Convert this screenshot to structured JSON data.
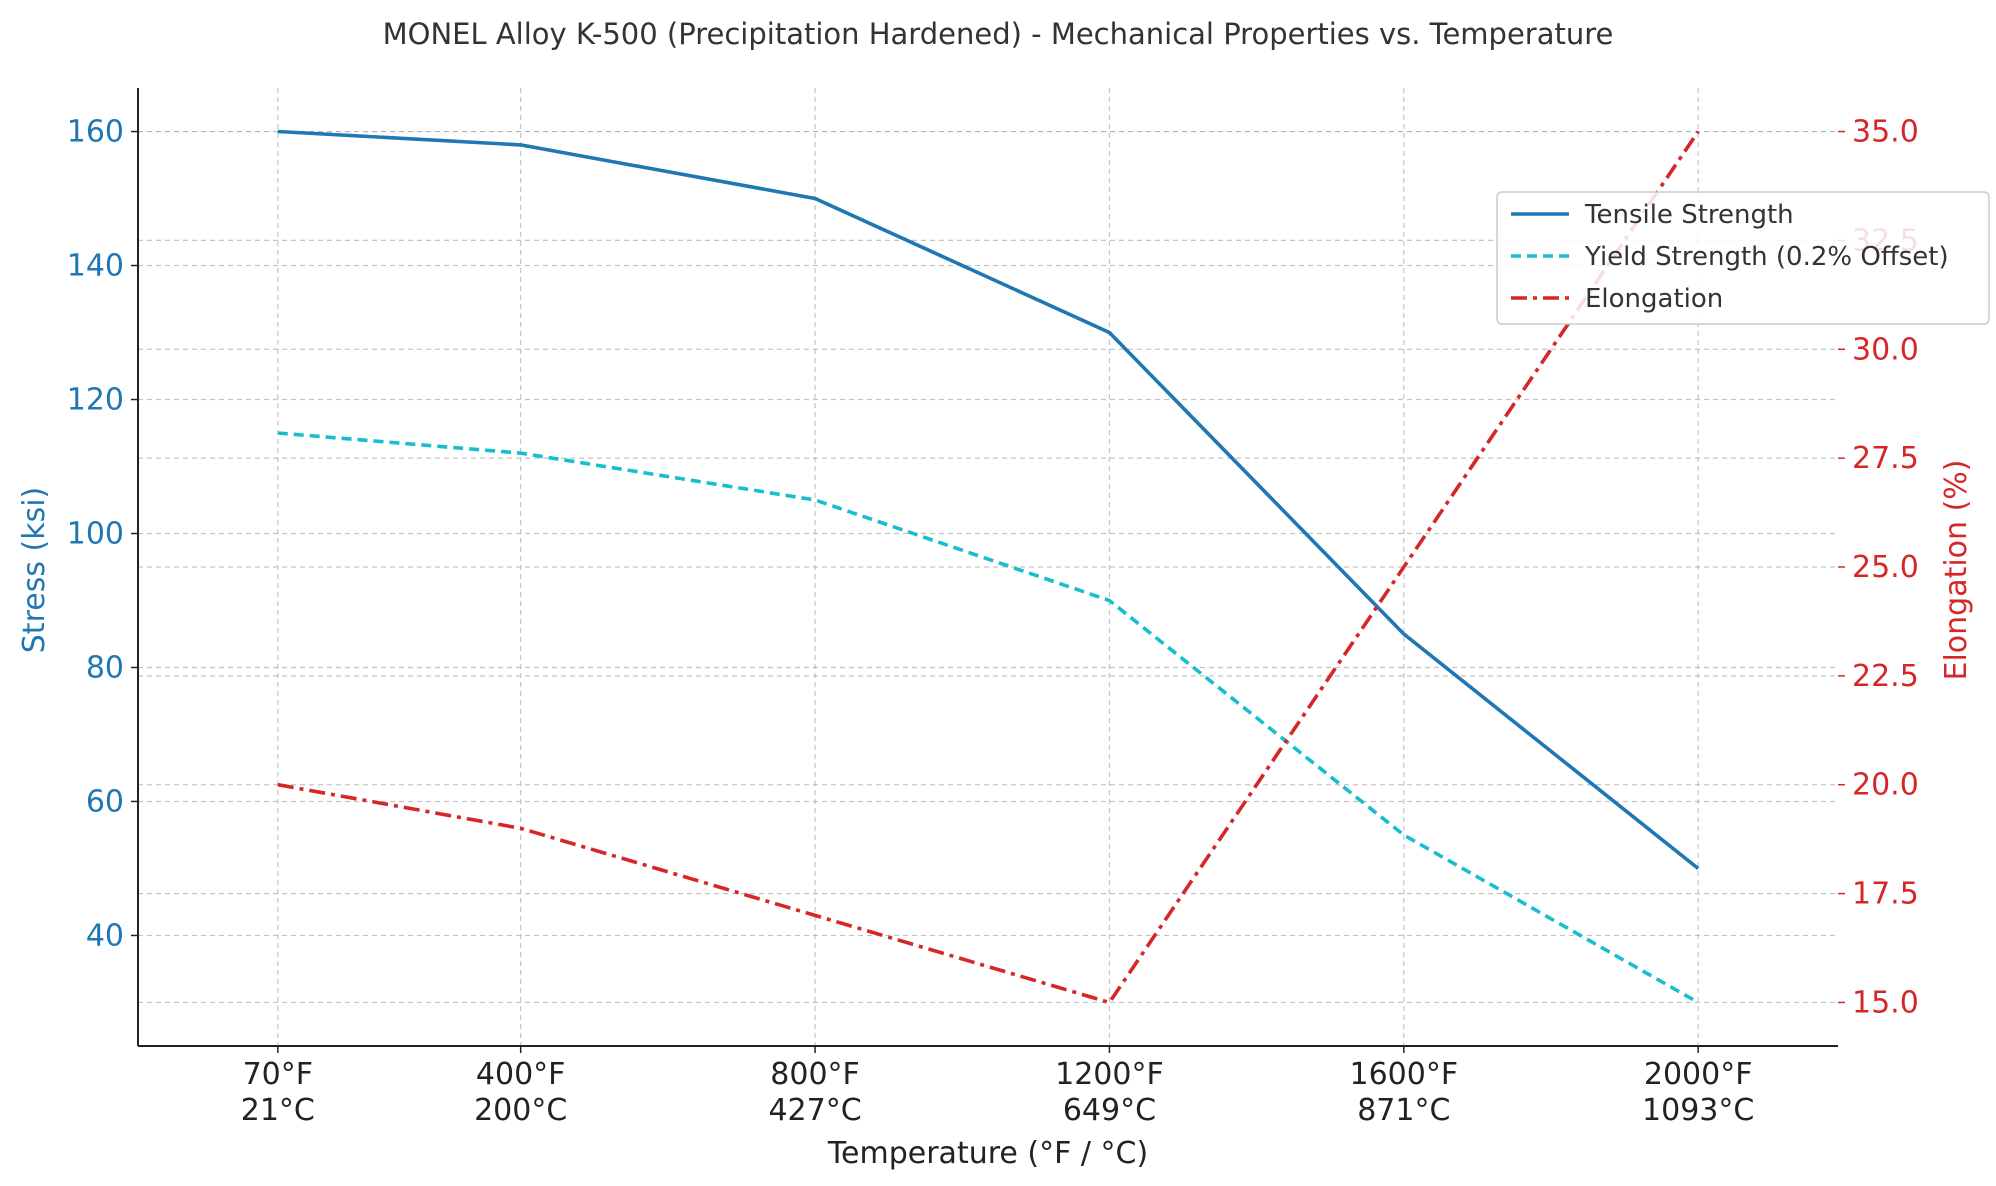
{
  "chart_data": {
    "type": "line",
    "title": "MONEL Alloy K-500 (Precipitation Hardened) - Mechanical Properties vs. Temperature",
    "xlabel": "Temperature (°F / °C)",
    "ylabel": "Stress (ksi)",
    "y2label": "Elongation (%)",
    "x": [
      70,
      400,
      800,
      1200,
      1600,
      2000
    ],
    "x_tick_labels": [
      [
        "70°F",
        "21°C"
      ],
      [
        "400°F",
        "200°C"
      ],
      [
        "800°F",
        "427°C"
      ],
      [
        "1200°F",
        "649°C"
      ],
      [
        "1600°F",
        "871°C"
      ],
      [
        "2000°F",
        "1093°C"
      ]
    ],
    "xlim": [
      -120,
      2190
    ],
    "ylim": [
      23.5,
      166.5
    ],
    "yticks": [
      40,
      60,
      80,
      100,
      120,
      140,
      160
    ],
    "y2lim": [
      14.0,
      36.0
    ],
    "y2ticks": [
      15.0,
      17.5,
      20.0,
      22.5,
      25.0,
      27.5,
      30.0,
      32.5,
      35.0
    ],
    "grid": true,
    "legend_position": "upper-right",
    "series": [
      {
        "name": "Tensile Strength",
        "axis": "left",
        "color": "#1f77b4",
        "dash": "solid",
        "values": [
          160,
          158,
          150,
          130,
          85,
          50
        ]
      },
      {
        "name": "Yield Strength (0.2% Offset)",
        "axis": "left",
        "color": "#17becf",
        "dash": "dashed",
        "values": [
          115,
          112,
          105,
          90,
          55,
          30
        ]
      },
      {
        "name": "Elongation",
        "axis": "right",
        "color": "#d62728",
        "dash": "dashdot",
        "values": [
          20,
          19,
          17,
          15,
          25,
          35
        ]
      }
    ],
    "colors": {
      "left_axis": "#1f77b4",
      "right_axis": "#d62728",
      "grid": "#b0b0b0",
      "text": "#333333"
    }
  }
}
